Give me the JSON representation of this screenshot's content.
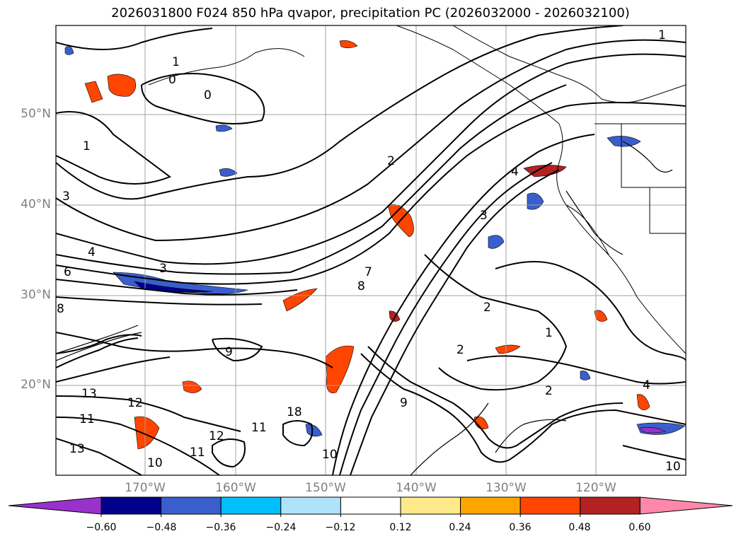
{
  "title": "2026031800 F024 850 hPa qvapor, precipitation PC (2026032000 - 2026032100)",
  "map": {
    "lat_labels": [
      "50°N",
      "40°N",
      "30°N",
      "20°N"
    ],
    "lon_labels": [
      "170°W",
      "160°W",
      "150°W",
      "140°W",
      "130°W",
      "120°W"
    ],
    "contour_labels": [
      "1",
      "0",
      "1",
      "0",
      "1",
      "3",
      "4",
      "6",
      "3",
      "8",
      "2",
      "3",
      "4",
      "7",
      "8",
      "2",
      "1",
      "2",
      "2",
      "9",
      "13",
      "12",
      "11",
      "13",
      "12",
      "11",
      "10",
      "11",
      "10",
      "18",
      "9",
      "4",
      "10"
    ]
  },
  "colorbar": {
    "ticks": [
      "−0.60",
      "−0.48",
      "−0.36",
      "−0.24",
      "−0.12",
      "0.12",
      "0.24",
      "0.36",
      "0.48",
      "0.60"
    ],
    "colors": [
      "#9932cc",
      "#00008b",
      "#3a5fcd",
      "#00bfff",
      "#afe3fa",
      "#ffffff",
      "#ffe98a",
      "#ffa500",
      "#ff4500",
      "#b22222",
      "#ff88aa"
    ]
  }
}
